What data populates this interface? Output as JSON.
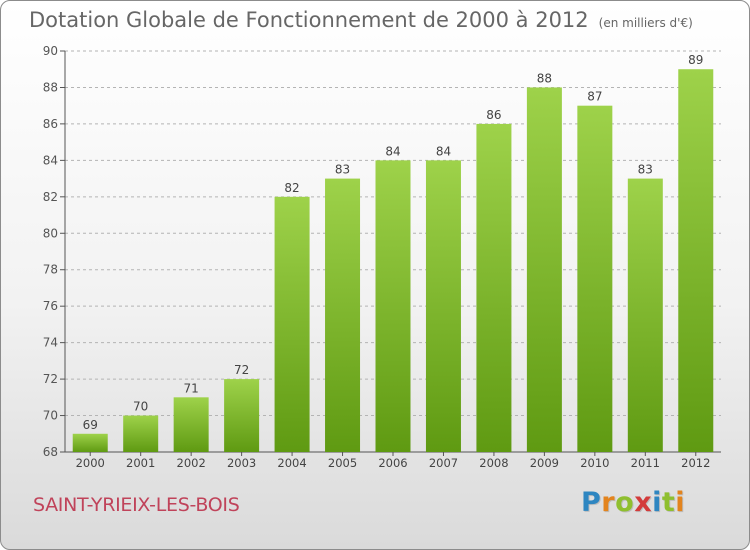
{
  "title": "Dotation Globale de Fonctionnement de 2000 à 2012",
  "unit_note": "(en milliers d'€)",
  "commune": "SAINT-YRIEIX-LES-BOIS",
  "logo": {
    "letters": [
      "P",
      "r",
      "o",
      "x",
      "i",
      "t",
      "i"
    ],
    "colors": [
      "#2e86c1",
      "#e3841e",
      "#8fbf2f",
      "#d33b3b",
      "#2e86c1",
      "#8fbf2f",
      "#e3841e"
    ]
  },
  "colors": {
    "bar_top": "#9ed24a",
    "bar_bottom": "#5f9a12",
    "grid": "#b4b4b4"
  },
  "chart_data": {
    "type": "bar",
    "categories": [
      "2000",
      "2001",
      "2002",
      "2003",
      "2004",
      "2005",
      "2006",
      "2007",
      "2008",
      "2009",
      "2010",
      "2011",
      "2012"
    ],
    "values": [
      69,
      70,
      71,
      72,
      82,
      83,
      84,
      84,
      86,
      88,
      87,
      83,
      89
    ],
    "ylim": [
      68,
      90
    ],
    "yticks": [
      68,
      70,
      72,
      74,
      76,
      78,
      80,
      82,
      84,
      86,
      88,
      90
    ],
    "grid": true,
    "grid_style": "dashed"
  }
}
